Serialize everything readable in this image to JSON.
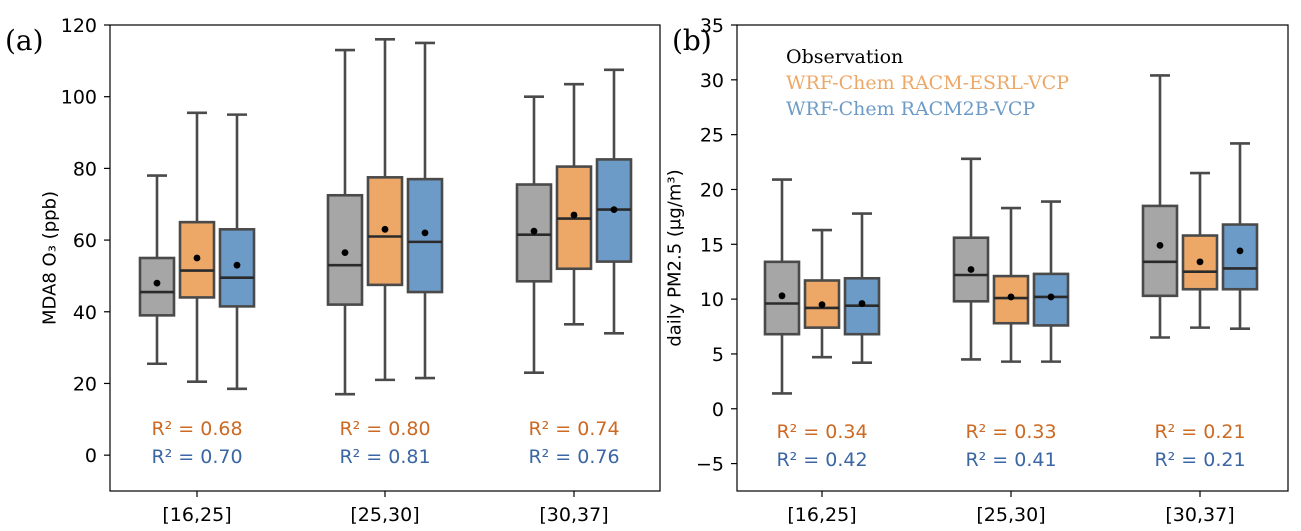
{
  "colors": {
    "obs": "#a6a6a6",
    "esrl": "#eda868",
    "racm2b": "#6d9bc8",
    "esrl_text": "#cc6a23",
    "racm2b_text": "#3b66a4",
    "stroke": "#4a4a4a"
  },
  "chart_data": [
    {
      "type": "box",
      "panel_label": "(a)",
      "ylabel": "MDA8 O₃ (ppb)",
      "ylim": [
        -10,
        120
      ],
      "yticks": [
        0,
        20,
        40,
        60,
        80,
        100,
        120
      ],
      "categories": [
        "[16,25]",
        "[25,30]",
        "[30,37]"
      ],
      "series": [
        {
          "key": "obs",
          "boxes": [
            {
              "whislo": 25.5,
              "q1": 39,
              "med": 45.5,
              "q3": 55,
              "whishi": 78,
              "mean": 48
            },
            {
              "whislo": 17,
              "q1": 42,
              "med": 53,
              "q3": 72.5,
              "whishi": 113,
              "mean": 56.5
            },
            {
              "whislo": 23,
              "q1": 48.5,
              "med": 61.5,
              "q3": 75.5,
              "whishi": 100,
              "mean": 62.5
            }
          ]
        },
        {
          "key": "esrl",
          "boxes": [
            {
              "whislo": 20.5,
              "q1": 44,
              "med": 51.5,
              "q3": 65,
              "whishi": 95.5,
              "mean": 55
            },
            {
              "whislo": 21,
              "q1": 47.5,
              "med": 61,
              "q3": 77.5,
              "whishi": 116,
              "mean": 63
            },
            {
              "whislo": 36.5,
              "q1": 52,
              "med": 66,
              "q3": 80.5,
              "whishi": 103.5,
              "mean": 67
            }
          ]
        },
        {
          "key": "racm2b",
          "boxes": [
            {
              "whislo": 18.5,
              "q1": 41.5,
              "med": 49.5,
              "q3": 63,
              "whishi": 95,
              "mean": 53
            },
            {
              "whislo": 21.5,
              "q1": 45.5,
              "med": 59.5,
              "q3": 77,
              "whishi": 115,
              "mean": 62
            },
            {
              "whislo": 34,
              "q1": 54,
              "med": 68.5,
              "q3": 82.5,
              "whishi": 107.5,
              "mean": 68.5
            }
          ]
        }
      ],
      "r2_esrl": [
        "R² = 0.68",
        "R² = 0.80",
        "R² = 0.74"
      ],
      "r2_racm2b": [
        "R² = 0.70",
        "R² = 0.81",
        "R² = 0.76"
      ]
    },
    {
      "type": "box",
      "panel_label": "(b)",
      "ylabel": "daily PM2.5 (μg/m³)",
      "ylim": [
        -7.5,
        35
      ],
      "yticks": [
        -5,
        0,
        5,
        10,
        15,
        20,
        25,
        30,
        35
      ],
      "categories": [
        "[16,25]",
        "[25,30]",
        "[30,37]"
      ],
      "legend": {
        "placement": "top-left",
        "entries": [
          "Observation",
          "WRF-Chem RACM-ESRL-VCP",
          "WRF-Chem RACM2B-VCP"
        ]
      },
      "series": [
        {
          "key": "obs",
          "boxes": [
            {
              "whislo": 1.4,
              "q1": 6.8,
              "med": 9.6,
              "q3": 13.4,
              "whishi": 20.9,
              "mean": 10.3
            },
            {
              "whislo": 4.5,
              "q1": 9.8,
              "med": 12.2,
              "q3": 15.6,
              "whishi": 22.8,
              "mean": 12.7
            },
            {
              "whislo": 6.5,
              "q1": 10.3,
              "med": 13.4,
              "q3": 18.5,
              "whishi": 30.4,
              "mean": 14.9
            }
          ]
        },
        {
          "key": "esrl",
          "boxes": [
            {
              "whislo": 4.7,
              "q1": 7.4,
              "med": 9.2,
              "q3": 11.7,
              "whishi": 16.3,
              "mean": 9.5
            },
            {
              "whislo": 4.3,
              "q1": 7.8,
              "med": 10.1,
              "q3": 12.1,
              "whishi": 18.3,
              "mean": 10.2
            },
            {
              "whislo": 7.4,
              "q1": 10.9,
              "med": 12.5,
              "q3": 15.8,
              "whishi": 21.5,
              "mean": 13.4
            }
          ]
        },
        {
          "key": "racm2b",
          "boxes": [
            {
              "whislo": 4.2,
              "q1": 6.8,
              "med": 9.4,
              "q3": 11.9,
              "whishi": 17.8,
              "mean": 9.6
            },
            {
              "whislo": 4.3,
              "q1": 7.6,
              "med": 10.2,
              "q3": 12.3,
              "whishi": 18.9,
              "mean": 10.2
            },
            {
              "whislo": 7.3,
              "q1": 10.9,
              "med": 12.8,
              "q3": 16.8,
              "whishi": 24.2,
              "mean": 14.4
            }
          ]
        }
      ],
      "r2_esrl": [
        "R² = 0.34",
        "R² = 0.33",
        "R² = 0.21"
      ],
      "r2_racm2b": [
        "R² = 0.42",
        "R² = 0.41",
        "R² = 0.21"
      ]
    }
  ]
}
